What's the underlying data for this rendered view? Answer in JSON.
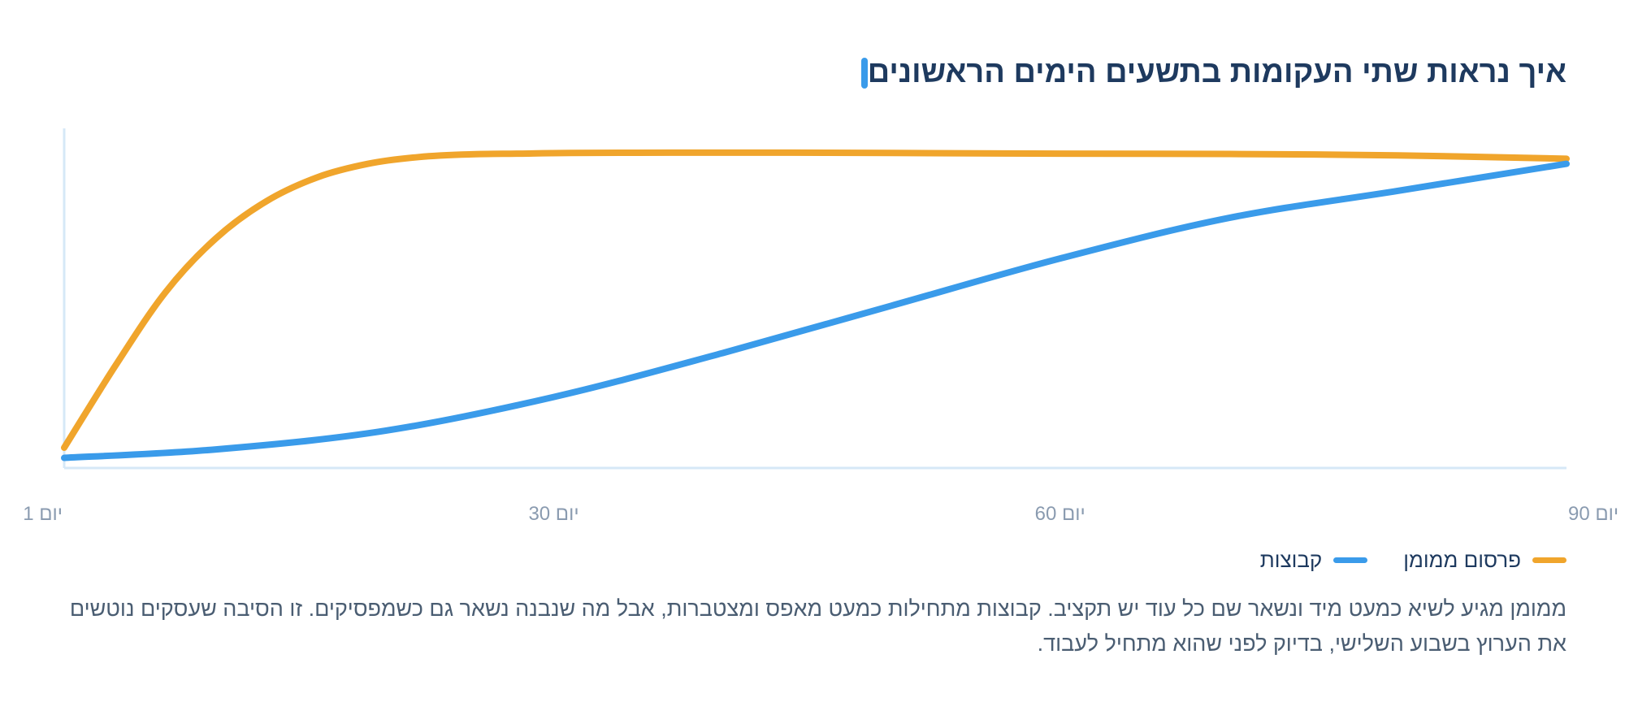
{
  "header": {
    "title": "איך נראות שתי העקומות בתשעים הימים הראשונים"
  },
  "colors": {
    "accent": "#3a9bea",
    "series_paid": "#f0a52c",
    "series_groups": "#3a9bea",
    "axis": "#d6e8f7",
    "tick_text": "#8a9bb0"
  },
  "chart_data": {
    "type": "line",
    "title": "איך נראות שתי העקומות בתשעים הימים הראשונים",
    "xlabel": "",
    "ylabel": "",
    "xlim": [
      1,
      90
    ],
    "ylim": [
      0,
      100
    ],
    "grid": false,
    "legend_position": "bottom-right",
    "x_ticks": [
      {
        "x": 1,
        "label": "יום 1"
      },
      {
        "x": 30,
        "label": "יום 30"
      },
      {
        "x": 60,
        "label": "יום 60"
      },
      {
        "x": 90,
        "label": "יום 90"
      }
    ],
    "series": [
      {
        "name": "פרסום ממומן",
        "color": "#f0a52c",
        "points": [
          [
            1,
            6
          ],
          [
            4,
            30
          ],
          [
            7,
            52
          ],
          [
            10,
            68
          ],
          [
            13,
            79
          ],
          [
            16,
            86
          ],
          [
            19,
            90
          ],
          [
            22,
            92
          ],
          [
            25,
            92.8
          ],
          [
            28,
            93
          ],
          [
            31,
            93.2
          ],
          [
            37,
            93.3
          ],
          [
            43,
            93.3
          ],
          [
            50,
            93.2
          ],
          [
            60,
            93
          ],
          [
            70,
            92.9
          ],
          [
            80,
            92.5
          ],
          [
            90,
            91.5
          ]
        ]
      },
      {
        "name": "קבוצות",
        "color": "#3a9bea",
        "points": [
          [
            1,
            3
          ],
          [
            10,
            5.5
          ],
          [
            20,
            11
          ],
          [
            30,
            21
          ],
          [
            40,
            34
          ],
          [
            50,
            48
          ],
          [
            60,
            62
          ],
          [
            70,
            74
          ],
          [
            80,
            82
          ],
          [
            90,
            90
          ]
        ]
      }
    ]
  },
  "legend": {
    "items": [
      {
        "label": "פרסום ממומן",
        "color": "#f0a52c"
      },
      {
        "label": "קבוצות",
        "color": "#3a9bea"
      }
    ]
  },
  "caption": {
    "text": "ממומן מגיע לשיא כמעט מיד ונשאר שם כל עוד יש תקציב. קבוצות מתחילות כמעט מאפס ומצטברות, אבל מה שנבנה נשאר גם כשמפסיקים. זו הסיבה שעסקים נוטשים את הערוץ בשבוע השלישי, בדיוק לפני שהוא מתחיל לעבוד."
  }
}
